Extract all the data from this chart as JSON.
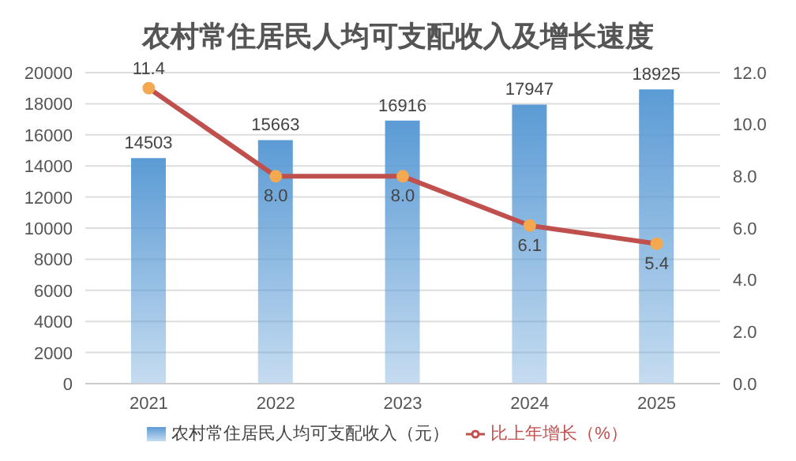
{
  "chart_data": {
    "type": "bar",
    "title": "农村常住居民人均可支配收入及增长速度",
    "categories": [
      "2021",
      "2022",
      "2023",
      "2024",
      "2025"
    ],
    "series": [
      {
        "name": "农村常住居民人均可支配收入（元）",
        "color": "#5b9bd5",
        "values": [
          14503,
          15663,
          16916,
          17947,
          18925
        ],
        "value_labels": [
          "14503",
          "15663",
          "16916",
          "17947",
          "18925"
        ]
      },
      {
        "name": "比上年增长（%）",
        "type": "line",
        "axis": "y2",
        "color": "#c0504d",
        "colors": [
          "#f4a850",
          "#f4a850",
          "#f4a850",
          "#f4a850",
          "#f4a850"
        ],
        "values": [
          11.4,
          8.0,
          8.0,
          6.1,
          5.4
        ],
        "value_labels": [
          "11.4",
          "8.0",
          "8.0",
          "6.1",
          "5.4"
        ]
      }
    ],
    "ylim": [
      0,
      20000
    ],
    "yticks": [
      0,
      2000,
      4000,
      6000,
      8000,
      10000,
      12000,
      14000,
      16000,
      18000,
      20000
    ],
    "y2lim": [
      0,
      12
    ],
    "y2ticks": [
      {
        "value": 0,
        "label": "0.0"
      },
      {
        "value": 2,
        "label": "2.0"
      },
      {
        "value": 4,
        "label": "4.0"
      },
      {
        "value": 6,
        "label": "6.0"
      },
      {
        "value": 8,
        "label": "8.0"
      },
      {
        "value": 10,
        "label": "10.0"
      },
      {
        "value": 12,
        "label": "12.0"
      }
    ],
    "grid": "y",
    "legend": "bottom",
    "marker": "circle"
  }
}
